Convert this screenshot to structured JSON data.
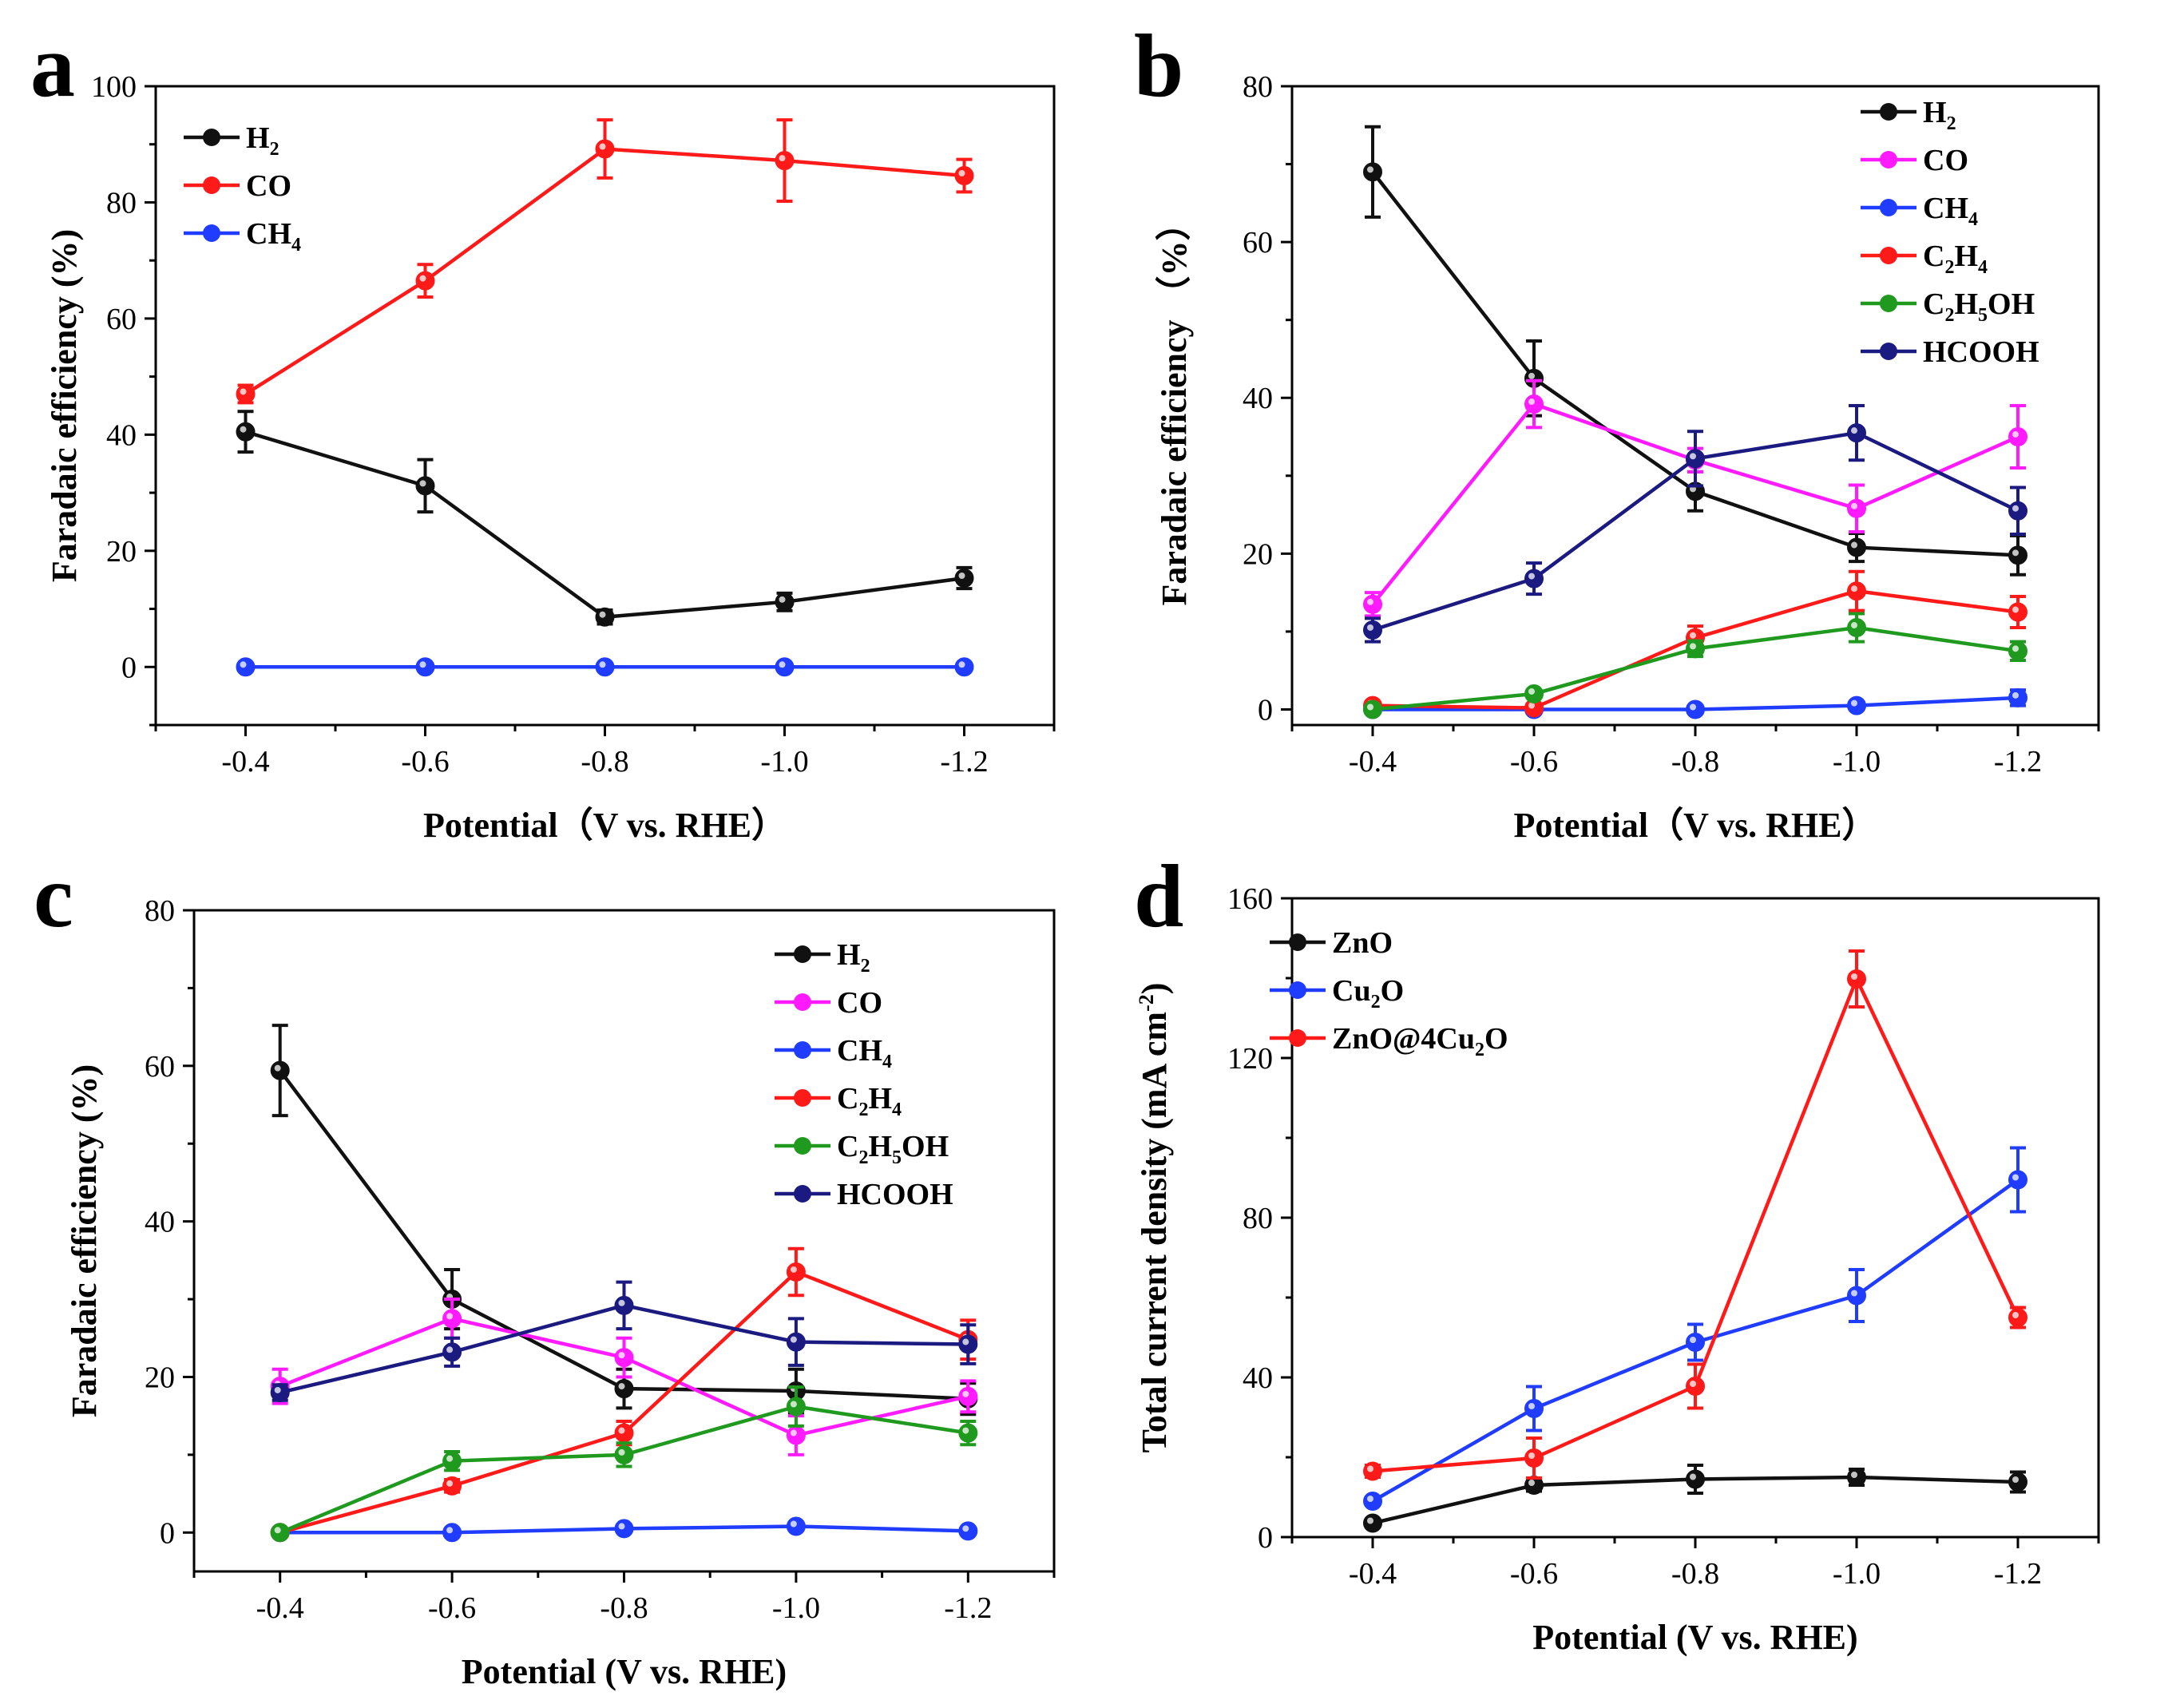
{
  "colors": {
    "black": "#111111",
    "red": "#ff1a1a",
    "blue": "#1f3cff",
    "magenta": "#ff1aff",
    "green": "#1f9a1f",
    "navy": "#1a1a80"
  },
  "chart_data": [
    {
      "panel": "a",
      "type": "line",
      "xlabel": "Potential（V vs. RHE）",
      "ylabel": "Faradaic efficiency (%)",
      "x": [
        -0.4,
        -0.6,
        -0.8,
        -1.0,
        -1.2
      ],
      "x_tick_labels": [
        "-0.4",
        "-0.6",
        "-0.8",
        "-1.0",
        "-1.2"
      ],
      "y_ticks": [
        0,
        20,
        40,
        60,
        80,
        100
      ],
      "ylim": [
        -10,
        100
      ],
      "legend_position": "top-left",
      "series": [
        {
          "name": "H",
          "sub": "2",
          "color": "black",
          "values": [
            40.5,
            31.2,
            8.6,
            11.2,
            15.3
          ],
          "errors": [
            3.5,
            4.5,
            1.2,
            1.5,
            1.8
          ]
        },
        {
          "name": "CO",
          "sub": "",
          "color": "red",
          "values": [
            47,
            66.5,
            89.2,
            87.2,
            84.6
          ],
          "errors": [
            1.5,
            2.8,
            5,
            7,
            2.8
          ]
        },
        {
          "name": "CH",
          "sub": "4",
          "color": "blue",
          "values": [
            0,
            0,
            0,
            0,
            0
          ],
          "errors": [
            0,
            0,
            0,
            0,
            0
          ]
        }
      ]
    },
    {
      "panel": "b",
      "type": "line",
      "xlabel": "Potential（V vs. RHE）",
      "ylabel": "Faradaic efficiency （%）",
      "x": [
        -0.4,
        -0.6,
        -0.8,
        -1.0,
        -1.2
      ],
      "x_tick_labels": [
        "-0.4",
        "-0.6",
        "-0.8",
        "-1.0",
        "-1.2"
      ],
      "y_ticks": [
        0,
        20,
        40,
        60,
        80
      ],
      "ylim": [
        -2,
        80
      ],
      "legend_position": "top-right",
      "series": [
        {
          "name": "H",
          "sub": "2",
          "color": "black",
          "values": [
            69,
            42.5,
            28,
            20.8,
            19.8
          ],
          "errors": [
            5.8,
            4.8,
            2.5,
            1.8,
            2.5
          ]
        },
        {
          "name": "CO",
          "sub": "",
          "color": "magenta",
          "values": [
            13.5,
            39.2,
            32,
            25.8,
            35
          ],
          "errors": [
            1.5,
            3,
            1.5,
            3,
            4
          ]
        },
        {
          "name": "CH",
          "sub": "4",
          "color": "blue",
          "values": [
            0,
            0,
            0,
            0.5,
            1.5
          ],
          "errors": [
            0,
            0,
            0,
            0.3,
            1
          ]
        },
        {
          "name": "C",
          "sub": "2",
          "name2": "H",
          "sub2": "4",
          "color": "red",
          "values": [
            0.5,
            0.2,
            9.2,
            15.2,
            12.5
          ],
          "errors": [
            0.5,
            0.3,
            1.5,
            2.5,
            2
          ]
        },
        {
          "name": "C",
          "sub": "2",
          "name2": "H",
          "sub2": "5",
          "tail": "OH",
          "color": "green",
          "values": [
            0,
            2,
            7.8,
            10.5,
            7.5
          ],
          "errors": [
            0,
            0.3,
            1,
            1.8,
            1.2
          ]
        },
        {
          "name": "HCOOH",
          "sub": "",
          "color": "navy",
          "values": [
            10.2,
            16.8,
            32.2,
            35.5,
            25.5
          ],
          "errors": [
            1.5,
            2,
            3.5,
            3.5,
            3
          ]
        }
      ]
    },
    {
      "panel": "c",
      "type": "line",
      "xlabel": "Potential (V vs. RHE)",
      "ylabel": "Faradaic efficiency (%)",
      "x": [
        -0.4,
        -0.6,
        -0.8,
        -1.0,
        -1.2
      ],
      "x_tick_labels": [
        "-0.4",
        "-0.6",
        "-0.8",
        "-1.0",
        "-1.2"
      ],
      "y_ticks": [
        0,
        20,
        40,
        60,
        80
      ],
      "ylim": [
        -5,
        80
      ],
      "legend_position": "top-right",
      "series": [
        {
          "name": "H",
          "sub": "2",
          "color": "black",
          "values": [
            59.4,
            30,
            18.5,
            18.2,
            17.2
          ],
          "errors": [
            5.8,
            3.8,
            2.5,
            2.8,
            2
          ]
        },
        {
          "name": "CO",
          "sub": "",
          "color": "magenta",
          "values": [
            18.8,
            27.5,
            22.5,
            12.5,
            17.5
          ],
          "errors": [
            2.2,
            2.5,
            2.5,
            2.5,
            2
          ]
        },
        {
          "name": "CH",
          "sub": "4",
          "color": "blue",
          "values": [
            0,
            0,
            0.5,
            0.8,
            0.2
          ],
          "errors": [
            0,
            0,
            0.3,
            0.3,
            0.2
          ]
        },
        {
          "name": "C",
          "sub": "2",
          "name2": "H",
          "sub2": "4",
          "color": "red",
          "values": [
            0,
            6,
            12.8,
            33.5,
            24.8
          ],
          "errors": [
            0,
            0.8,
            1.5,
            3,
            2.5
          ]
        },
        {
          "name": "C",
          "sub": "2",
          "name2": "H",
          "sub2": "5",
          "tail": "OH",
          "color": "green",
          "values": [
            0,
            9.2,
            10,
            16.2,
            12.8
          ],
          "errors": [
            0,
            1.2,
            1.5,
            2.5,
            1.5
          ]
        },
        {
          "name": "HCOOH",
          "sub": "",
          "color": "navy",
          "values": [
            18,
            23.2,
            29.2,
            24.5,
            24.2
          ],
          "errors": [
            1,
            1.8,
            3,
            3,
            2.5
          ]
        }
      ]
    },
    {
      "panel": "d",
      "type": "line",
      "xlabel": "Potential (V vs. RHE)",
      "ylabel": "Total current density (mA cm",
      "ylabel_sup": "-2",
      "ylabel_end": ")",
      "x": [
        -0.4,
        -0.6,
        -0.8,
        -1.0,
        -1.2
      ],
      "x_tick_labels": [
        "-0.4",
        "-0.6",
        "-0.8",
        "-1.0",
        "-1.2"
      ],
      "y_ticks": [
        0,
        40,
        80,
        120,
        160
      ],
      "ylim": [
        0,
        160
      ],
      "legend_position": "top-left",
      "series": [
        {
          "name": "ZnO",
          "sub": "",
          "color": "black",
          "values": [
            3.5,
            13,
            14.5,
            15,
            13.8
          ],
          "errors": [
            1,
            1.5,
            3.5,
            2,
            2.5
          ]
        },
        {
          "name": "Cu",
          "sub": "2",
          "name2": "O",
          "sub2": "",
          "color": "blue",
          "values": [
            9,
            32.2,
            48.8,
            60.5,
            89.5
          ],
          "errors": [
            1,
            5.5,
            4.5,
            6.5,
            8
          ]
        },
        {
          "name": "ZnO@4Cu",
          "sub": "2",
          "name2": "O",
          "sub2": "",
          "color": "red",
          "values": [
            16.5,
            19.8,
            37.8,
            139.8,
            55
          ],
          "errors": [
            1.5,
            5,
            5.5,
            7,
            2.5
          ]
        }
      ]
    }
  ]
}
